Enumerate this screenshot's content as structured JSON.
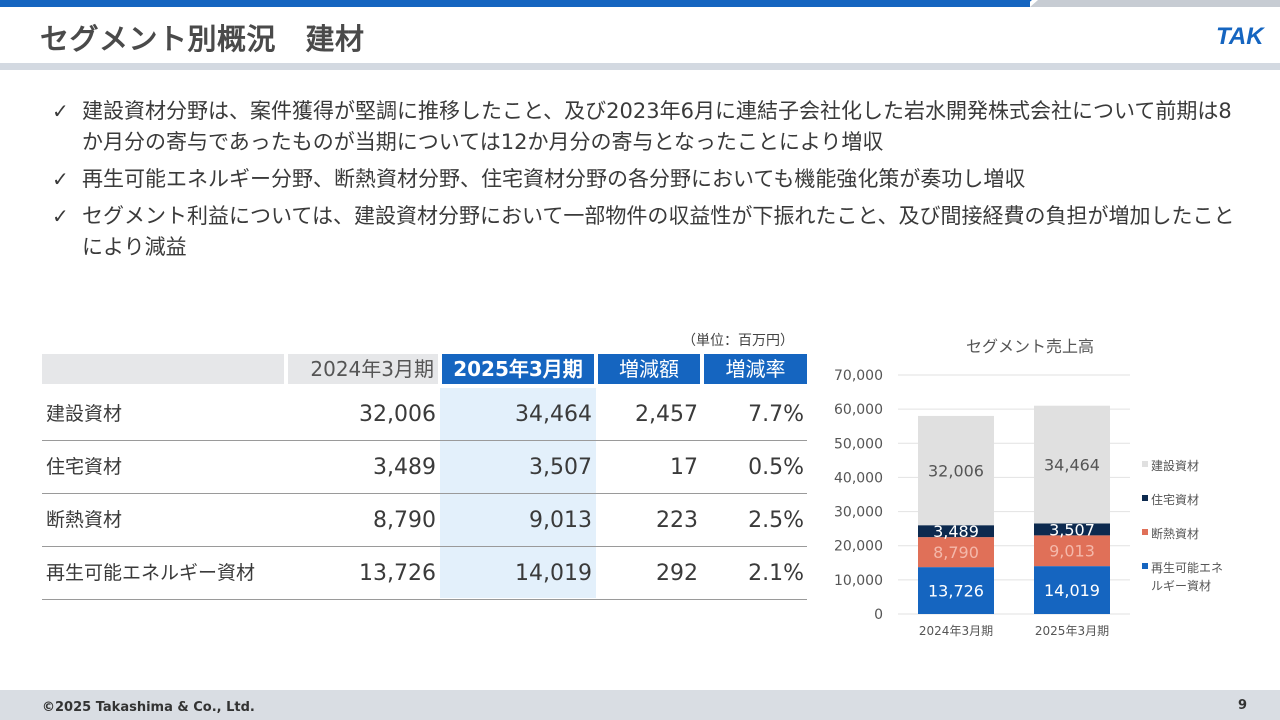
{
  "header": {
    "title": "セグメント別概況　建材",
    "logo_text": "TAK"
  },
  "bullets": [
    "建設資材分野は、案件獲得が堅調に推移したこと、及び2023年6月に連結子会社化した岩水開発株式会社について前期は8か月分の寄与であったものが当期については12か月分の寄与となったことにより増収",
    "再生可能エネルギー分野、断熱資材分野、住宅資材分野の各分野においても機能強化策が奏功し増収",
    "セグメント利益については、建設資材分野において一部物件の収益性が下振れたこと、及び間接経費の負担が増加したことにより減益"
  ],
  "table": {
    "unit": "（単位：百万円）",
    "headers": {
      "prev": "2024年3月期",
      "curr": "2025年3月期",
      "diff": "増減額",
      "rate": "増減率"
    },
    "rows": [
      {
        "name": "建設資材",
        "prev": "32,006",
        "curr": "34,464",
        "diff": "2,457",
        "rate": "7.7%"
      },
      {
        "name": "住宅資材",
        "prev": "3,489",
        "curr": "3,507",
        "diff": "17",
        "rate": "0.5%"
      },
      {
        "name": "断熱資材",
        "prev": "8,790",
        "curr": "9,013",
        "diff": "223",
        "rate": "2.5%"
      },
      {
        "name": "再生可能エネルギー資材",
        "prev": "13,726",
        "curr": "14,019",
        "diff": "292",
        "rate": "2.1%"
      }
    ]
  },
  "chart_data": {
    "type": "bar",
    "stacked": true,
    "title": "セグメント売上高",
    "categories": [
      "2024年3月期",
      "2025年3月期"
    ],
    "series": [
      {
        "name": "再生可能エネルギー資材",
        "values": [
          13726,
          14019
        ],
        "labels": [
          "13,726",
          "14,019"
        ],
        "color": "#1565c0"
      },
      {
        "name": "断熱資材",
        "values": [
          8790,
          9013
        ],
        "labels": [
          "8,790",
          "9,013"
        ],
        "color": "#e07058"
      },
      {
        "name": "住宅資材",
        "values": [
          3489,
          3507
        ],
        "labels": [
          "3,489",
          "3,507"
        ],
        "color": "#0d2a4f"
      },
      {
        "name": "建設資材",
        "values": [
          32006,
          34464
        ],
        "labels": [
          "32,006",
          "34,464"
        ],
        "color": "#e0e0e0"
      }
    ],
    "legend_order": [
      3,
      2,
      1,
      0
    ],
    "legend_labels": [
      "建設資材",
      "住宅資材",
      "断熱資材",
      "再生可能エネ",
      "ルギー資材"
    ],
    "ylim": [
      0,
      70000
    ],
    "yticks": [
      "0",
      "10,000",
      "20,000",
      "30,000",
      "40,000",
      "50,000",
      "60,000",
      "70,000"
    ],
    "grid": true,
    "legend_position": "right"
  },
  "footer": {
    "copyright": "©2025 Takashima & Co., Ltd.",
    "page_number": "9"
  }
}
